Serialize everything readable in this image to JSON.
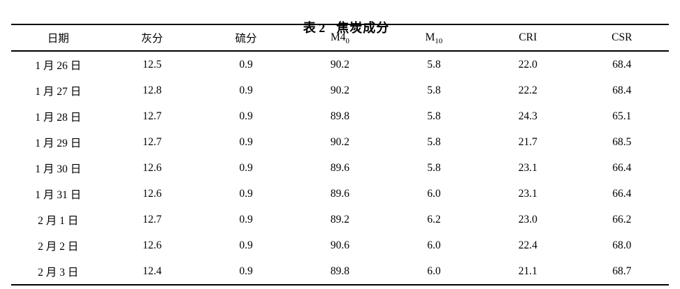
{
  "caption": {
    "number": "表 2",
    "title": "焦炭成分"
  },
  "table": {
    "columns": [
      {
        "label": "日期",
        "sub": ""
      },
      {
        "label": "灰分",
        "sub": ""
      },
      {
        "label": "硫分",
        "sub": ""
      },
      {
        "label": "M4",
        "sub": "0"
      },
      {
        "label": "M",
        "sub": "10"
      },
      {
        "label": "CRI",
        "sub": ""
      },
      {
        "label": "CSR",
        "sub": ""
      }
    ],
    "rows": [
      [
        "1 月 26 日",
        "12.5",
        "0.9",
        "90.2",
        "5.8",
        "22.0",
        "68.4"
      ],
      [
        "1 月 27 日",
        "12.8",
        "0.9",
        "90.2",
        "5.8",
        "22.2",
        "68.4"
      ],
      [
        "1 月 28 日",
        "12.7",
        "0.9",
        "89.8",
        "5.8",
        "24.3",
        "65.1"
      ],
      [
        "1 月 29 日",
        "12.7",
        "0.9",
        "90.2",
        "5.8",
        "21.7",
        "68.5"
      ],
      [
        "1 月 30 日",
        "12.6",
        "0.9",
        "89.6",
        "5.8",
        "23.1",
        "66.4"
      ],
      [
        "1 月 31 日",
        "12.6",
        "0.9",
        "89.6",
        "6.0",
        "23.1",
        "66.4"
      ],
      [
        "2 月 1 日",
        "12.7",
        "0.9",
        "89.2",
        "6.2",
        "23.0",
        "66.2"
      ],
      [
        "2 月 2 日",
        "12.6",
        "0.9",
        "90.6",
        "6.0",
        "22.4",
        "68.0"
      ],
      [
        "2 月 3 日",
        "12.4",
        "0.9",
        "89.8",
        "6.0",
        "21.1",
        "68.7"
      ]
    ]
  },
  "colors": {
    "text": "#000000",
    "rule": "#000000",
    "background": "#ffffff"
  }
}
